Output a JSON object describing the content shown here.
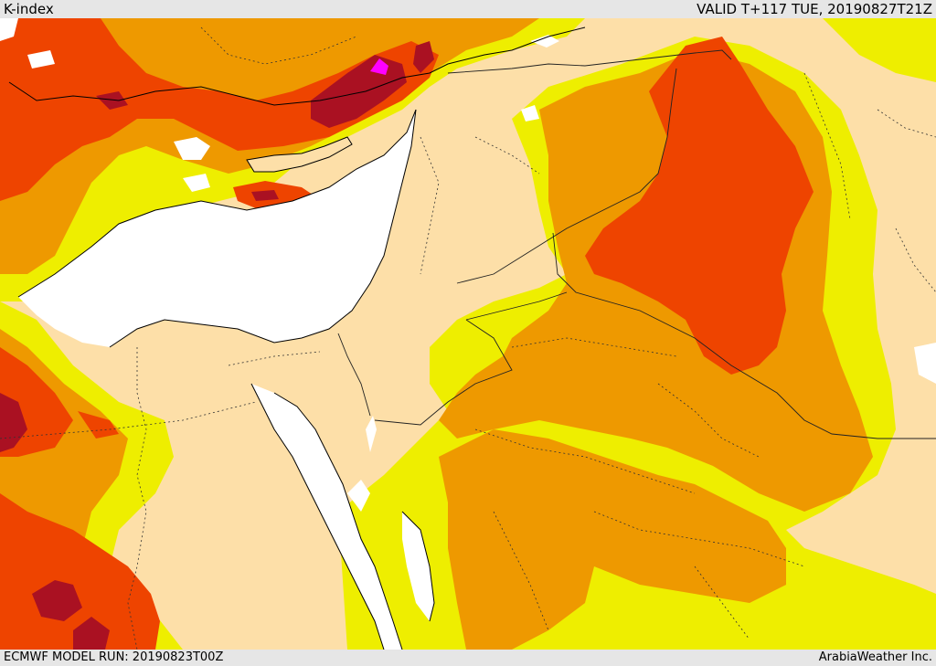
{
  "header": {
    "title": "K-index",
    "valid": "VALID T+117 TUE, 20190827T21Z"
  },
  "footer": {
    "model_run": "ECMWF MODEL RUN: 20190823T00Z",
    "credit": "ArabiaWeather Inc."
  },
  "colors": {
    "land": "#fddfa8",
    "sea": "#ffffff",
    "yellow": "#eeee00",
    "orange": "#ee9900",
    "red_orange": "#ee4400",
    "dark_red": "#aa1122",
    "magenta": "#ff00ff",
    "header_bg": "#e6e6e6"
  }
}
